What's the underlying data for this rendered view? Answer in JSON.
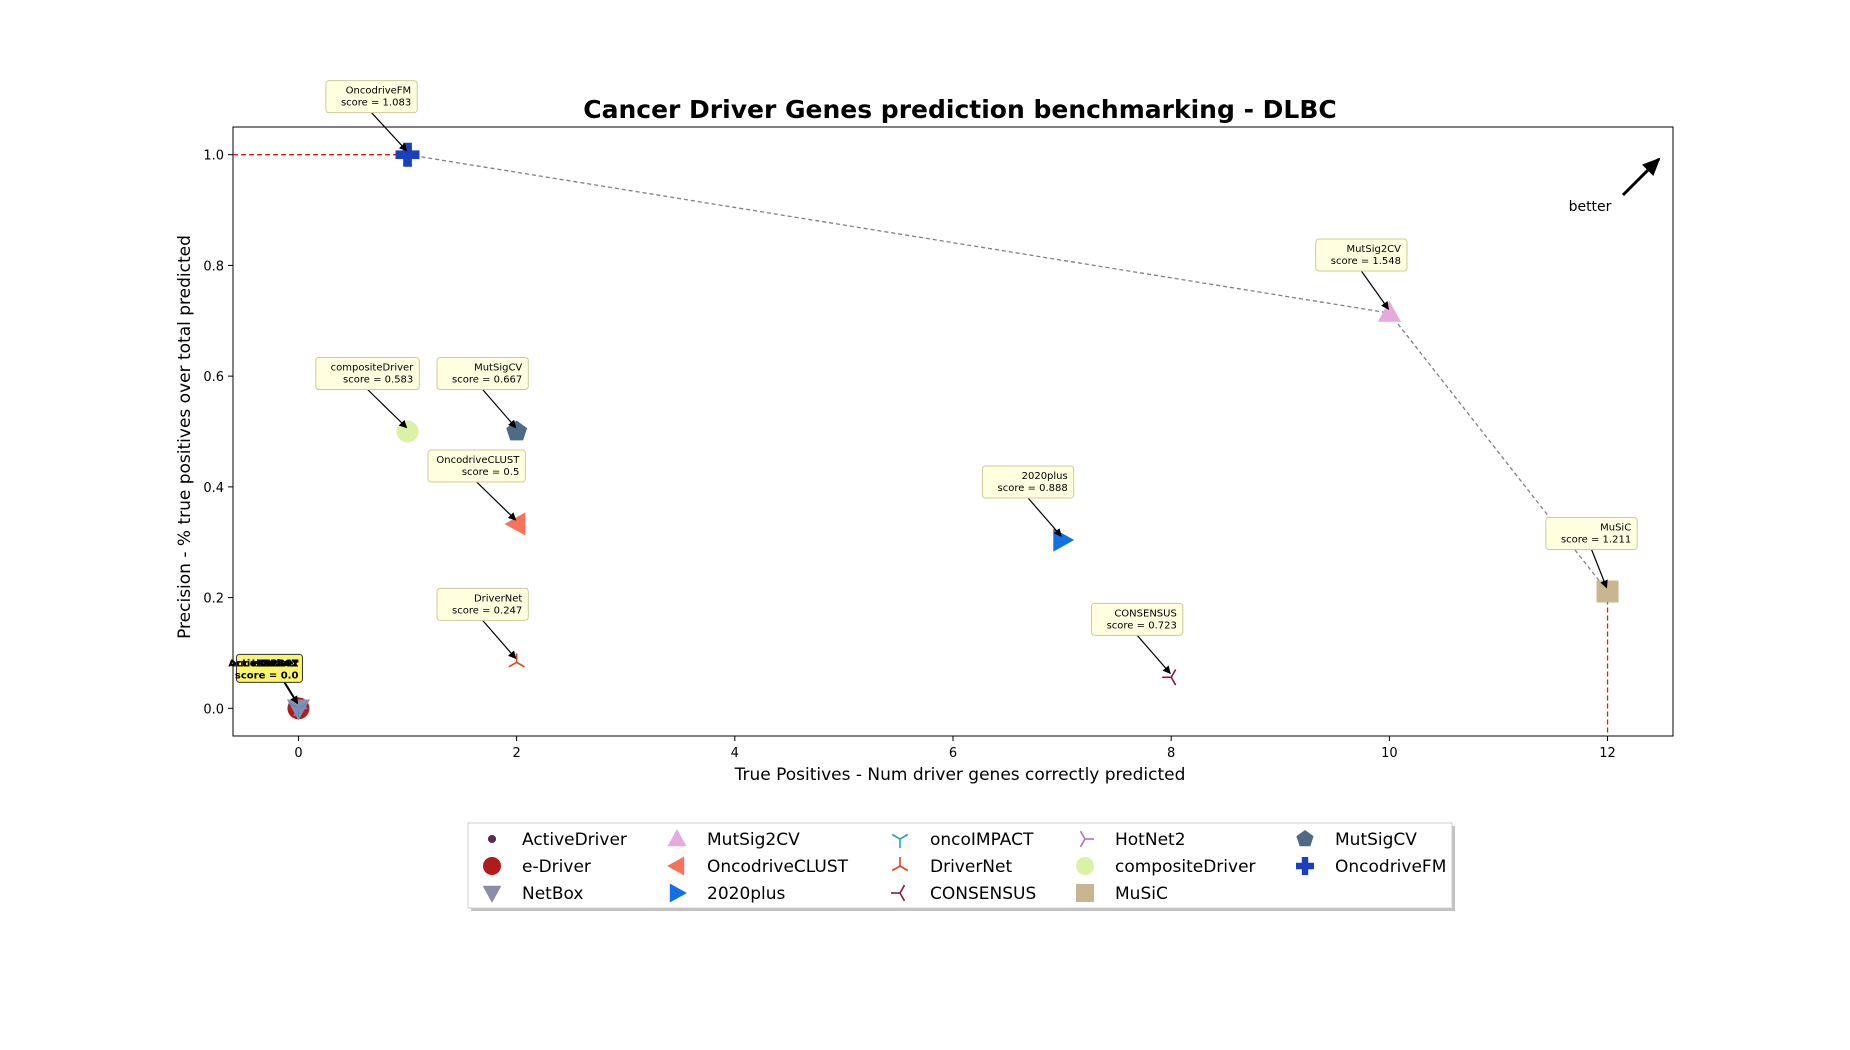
{
  "chart_data": {
    "type": "scatter",
    "title": "Cancer Driver Genes prediction benchmarking - DLBC",
    "xlabel": "True Positives - Num driver genes correctly predicted",
    "ylabel": "Precision - % true positives over total predicted",
    "xlim": [
      -0.6,
      12.6
    ],
    "ylim": [
      -0.05,
      1.05
    ],
    "xticks": [
      0,
      2,
      4,
      6,
      8,
      10,
      12
    ],
    "yticks": [
      0.0,
      0.2,
      0.4,
      0.6,
      0.8,
      1.0
    ],
    "grid": false,
    "legend_position": "bottom-center",
    "better_label": "better",
    "series": [
      {
        "name": "ActiveDriver",
        "x": 0,
        "y": 0.0,
        "score": "0.0",
        "marker": "dot",
        "color": "#5c2a4a",
        "label_text": "ActiveDriver"
      },
      {
        "name": "e-Driver",
        "x": 0,
        "y": 0.0,
        "score": "0.0",
        "marker": "circle",
        "color": "#b01b1b",
        "label_text": "e-Driver"
      },
      {
        "name": "NetBox",
        "x": 0,
        "y": 0.0,
        "score": "0.0",
        "marker": "tri-down",
        "color": "#8c8cac",
        "label_text": "NetBox"
      },
      {
        "name": "MutSig2CV",
        "x": 10,
        "y": 0.714,
        "score": "1.548",
        "marker": "tri-up",
        "color": "#e6a9dc",
        "label_text": "MutSig2CV"
      },
      {
        "name": "OncodriveCLUST",
        "x": 2,
        "y": 0.333,
        "score": "0.5",
        "marker": "tri-left",
        "color": "#f5735c",
        "label_text": "OncodriveCLUST"
      },
      {
        "name": "2020plus",
        "x": 7,
        "y": 0.304,
        "score": "0.888",
        "marker": "tri-right",
        "color": "#1170e6",
        "label_text": "2020plus"
      },
      {
        "name": "oncoIMPACT",
        "x": 0,
        "y": 0.0,
        "score": "0.0",
        "marker": "y-down",
        "color": "#22aab0",
        "label_text": "oncoIMPACT"
      },
      {
        "name": "DriverNet",
        "x": 2,
        "y": 0.083,
        "score": "0.247",
        "marker": "y-up",
        "color": "#d6451f",
        "label_text": "DriverNet"
      },
      {
        "name": "CONSENSUS",
        "x": 8,
        "y": 0.056,
        "score": "0.723",
        "marker": "y-left",
        "color": "#8b1a3a",
        "label_text": "CONSENSUS"
      },
      {
        "name": "HotNet2",
        "x": 0,
        "y": 0.0,
        "score": "0.0",
        "marker": "y-right",
        "color": "#a575c9",
        "label_text": "HotNet2"
      },
      {
        "name": "compositeDriver",
        "x": 1,
        "y": 0.5,
        "score": "0.583",
        "marker": "circle",
        "color": "#d9f2a5",
        "label_text": "compositeDriver"
      },
      {
        "name": "MuSiC",
        "x": 12,
        "y": 0.211,
        "score": "1.211",
        "marker": "square",
        "color": "#c8b692",
        "label_text": "MuSiC"
      },
      {
        "name": "MutSigCV",
        "x": 2,
        "y": 0.5,
        "score": "0.667",
        "marker": "pentagon",
        "color": "#4e6a85",
        "label_text": "MutSigCV"
      },
      {
        "name": "OncodriveFM",
        "x": 1,
        "y": 1.0,
        "score": "1.083",
        "marker": "plus",
        "color": "#1a3fbf",
        "label_text": "OncodriveFM"
      }
    ],
    "pareto_frontier": [
      [
        1,
        1.0
      ],
      [
        10,
        0.714
      ],
      [
        12,
        0.211
      ]
    ],
    "overlap_annotation": {
      "names": [
        "ActiveDriver",
        "e-Driver",
        "NetBox",
        "oncoIMPACT",
        "HotNet2"
      ],
      "score": "0.0",
      "x": 0,
      "y": 0.0
    }
  }
}
